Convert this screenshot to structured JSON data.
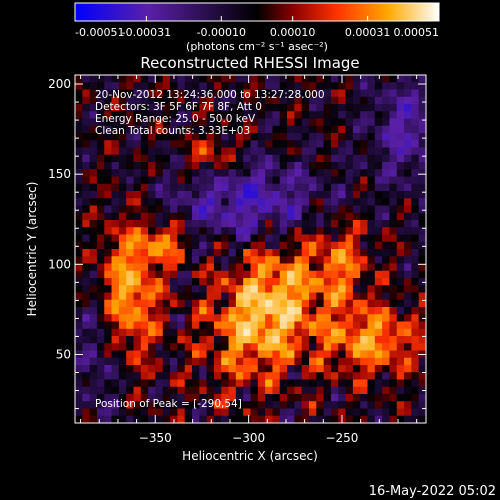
{
  "chart_data": {
    "type": "heatmap",
    "title": "Reconstructed RHESSI Image",
    "xlabel": "Heliocentric X (arcsec)",
    "ylabel": "Heliocentric Y (arcsec)",
    "xlim": [
      -393,
      -205
    ],
    "ylim": [
      12,
      205
    ],
    "x_ticks": [
      -350,
      -300,
      -250
    ],
    "y_ticks": [
      50,
      100,
      150,
      200
    ],
    "colorbar": {
      "range": [
        -0.00051,
        0.00051
      ],
      "tick_values": [
        -0.00051,
        -0.00031,
        -0.0001,
        0.0001,
        0.00031,
        0.00051
      ],
      "tick_labels": [
        "-0.00051",
        "-0.00031",
        "-0.00010",
        "0.00010",
        "0.00031",
        "0.00051"
      ],
      "unit_label": "(photons cm⁻² s⁻¹ asec⁻²)"
    },
    "colormap_stops": [
      "#0000ff",
      "#5a1fa8",
      "#000000",
      "#8b0000",
      "#ff3300",
      "#ffa800",
      "#ffffff"
    ],
    "peak_x": -290,
    "peak_y": 54,
    "annotations": {
      "time_range": "20-Nov-2012 13:24:36.000 to 13:27:28.000",
      "detectors": "Detectors: 3F 5F 6F 7F 8F, Att 0",
      "energy": "Energy Range: 25.0 - 50.0 keV",
      "clean": "Clean     Total counts: 3.33E+03",
      "peak": "Position of Peak = [-290,54]"
    },
    "footer_date": "16-May-2022 05:02"
  }
}
